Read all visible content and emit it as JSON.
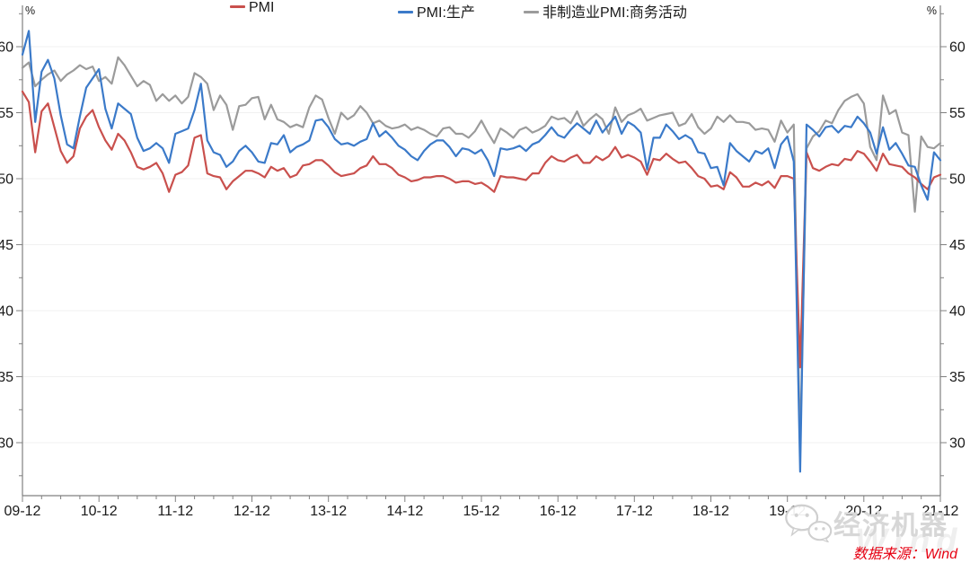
{
  "page": {
    "background": "#ffffff"
  },
  "footer": {
    "source_text": "数据来源：Wind",
    "color": "#e60012"
  },
  "watermark": {
    "icon": "wechat-icon",
    "text": "经济机器",
    "wind_text": "Wind"
  },
  "chart_data": {
    "type": "line",
    "title": "",
    "xlabel": "",
    "ylabel_left": "%",
    "ylabel_right": "%",
    "x_start": "2009-12",
    "x_end": "2021-12",
    "frequency": "monthly",
    "x_tick_labels": [
      "09-12",
      "10-12",
      "11-12",
      "12-12",
      "13-12",
      "14-12",
      "15-12",
      "16-12",
      "17-12",
      "18-12",
      "19-12",
      "20-12",
      "21-12"
    ],
    "x_major_every_months": 12,
    "x_minor_every_months": 3,
    "y_ticks": [
      30,
      35,
      40,
      45,
      50,
      55,
      60
    ],
    "y_minor_step": 2.5,
    "ylim": [
      26,
      63
    ],
    "grid": "horizontal-light",
    "legend_position": "bottom",
    "axis_color": "#808080",
    "grid_color": "#f0f0f0",
    "text_color": "#1a1a1a",
    "series": [
      {
        "name": "PMI",
        "color": "#c9504d",
        "values": [
          56.6,
          55.8,
          52.0,
          55.1,
          55.7,
          53.9,
          52.1,
          51.2,
          51.7,
          53.8,
          54.7,
          55.2,
          53.9,
          52.9,
          52.2,
          53.4,
          52.9,
          52.0,
          50.9,
          50.7,
          50.9,
          51.2,
          50.4,
          49.0,
          50.3,
          50.5,
          51.0,
          53.1,
          53.3,
          50.4,
          50.2,
          50.1,
          49.2,
          49.8,
          50.2,
          50.6,
          50.6,
          50.4,
          50.1,
          50.9,
          50.6,
          50.8,
          50.1,
          50.3,
          51.0,
          51.1,
          51.4,
          51.4,
          51.0,
          50.5,
          50.2,
          50.3,
          50.4,
          50.8,
          51.0,
          51.7,
          51.1,
          51.1,
          50.8,
          50.3,
          50.1,
          49.8,
          49.9,
          50.1,
          50.1,
          50.2,
          50.2,
          50.0,
          49.7,
          49.8,
          49.8,
          49.6,
          49.7,
          49.4,
          49.0,
          50.2,
          50.1,
          50.1,
          50.0,
          49.9,
          50.4,
          50.4,
          51.2,
          51.7,
          51.4,
          51.3,
          51.6,
          51.8,
          51.2,
          51.2,
          51.7,
          51.4,
          51.7,
          52.4,
          51.6,
          51.8,
          51.6,
          51.3,
          50.3,
          51.5,
          51.4,
          51.9,
          51.5,
          51.2,
          51.3,
          50.8,
          50.2,
          50.0,
          49.4,
          49.5,
          49.2,
          50.5,
          50.1,
          49.4,
          49.4,
          49.7,
          49.5,
          49.8,
          49.3,
          50.2,
          50.2,
          50.0,
          35.7,
          52.0,
          50.8,
          50.6,
          50.9,
          51.1,
          51.0,
          51.5,
          51.4,
          52.1,
          51.9,
          51.3,
          50.6,
          51.9,
          51.1,
          51.0,
          50.9,
          50.4,
          50.1,
          49.6,
          49.2,
          50.1,
          50.3
        ]
      },
      {
        "name": "PMI:生产",
        "color": "#3b7ac9",
        "values": [
          59.4,
          61.2,
          54.3,
          58.1,
          59.0,
          57.6,
          54.8,
          52.6,
          52.3,
          54.7,
          56.9,
          57.6,
          58.3,
          55.3,
          53.8,
          55.7,
          55.3,
          54.9,
          53.1,
          52.1,
          52.3,
          52.7,
          52.3,
          51.2,
          53.4,
          53.6,
          53.8,
          55.2,
          57.2,
          52.9,
          52.0,
          51.8,
          50.9,
          51.3,
          52.1,
          52.5,
          52.0,
          51.3,
          51.2,
          52.7,
          52.6,
          53.3,
          52.0,
          52.4,
          52.6,
          52.9,
          54.4,
          54.5,
          53.9,
          53.0,
          52.6,
          52.7,
          52.5,
          52.8,
          53.0,
          54.2,
          53.2,
          53.6,
          53.1,
          52.5,
          52.2,
          51.7,
          51.4,
          52.1,
          52.6,
          52.9,
          52.9,
          52.4,
          51.7,
          52.3,
          52.2,
          51.9,
          52.2,
          51.4,
          50.2,
          52.3,
          52.2,
          52.3,
          52.5,
          52.1,
          52.6,
          52.8,
          53.3,
          53.9,
          53.3,
          53.1,
          53.7,
          54.2,
          53.8,
          53.4,
          54.4,
          53.5,
          54.1,
          54.7,
          53.4,
          54.3,
          54.0,
          53.5,
          50.7,
          53.1,
          53.1,
          54.1,
          53.6,
          53.0,
          53.3,
          53.0,
          52.0,
          51.9,
          50.8,
          50.9,
          49.5,
          52.7,
          52.1,
          51.7,
          51.3,
          52.1,
          51.9,
          52.3,
          50.8,
          52.6,
          53.2,
          51.3,
          27.8,
          54.1,
          53.7,
          53.2,
          53.9,
          54.0,
          53.5,
          54.0,
          53.9,
          54.7,
          54.2,
          53.5,
          51.9,
          53.9,
          52.2,
          52.7,
          51.9,
          51.0,
          50.9,
          49.5,
          48.4,
          52.0,
          51.4
        ]
      },
      {
        "name": "非制造业PMI:商务活动",
        "color": "#9b9b9b",
        "values": [
          58.4,
          58.8,
          57.0,
          57.5,
          57.9,
          58.2,
          57.4,
          57.9,
          58.2,
          58.6,
          58.3,
          58.5,
          57.4,
          57.7,
          57.2,
          59.2,
          58.6,
          57.8,
          57.0,
          57.4,
          57.1,
          55.9,
          56.4,
          55.9,
          56.3,
          55.7,
          56.2,
          58.0,
          57.7,
          57.2,
          55.2,
          56.3,
          55.6,
          53.7,
          55.5,
          55.6,
          56.1,
          56.2,
          54.5,
          55.6,
          54.5,
          54.3,
          53.9,
          54.1,
          53.9,
          55.4,
          56.3,
          56.0,
          54.6,
          53.4,
          55.0,
          54.5,
          54.8,
          55.5,
          55.0,
          54.2,
          54.4,
          54.0,
          53.8,
          53.9,
          54.1,
          53.7,
          53.9,
          53.7,
          53.4,
          53.2,
          53.8,
          53.9,
          53.4,
          53.4,
          53.1,
          53.6,
          54.4,
          53.5,
          52.7,
          53.8,
          53.5,
          53.1,
          53.7,
          53.9,
          53.5,
          53.7,
          54.0,
          54.7,
          54.5,
          54.6,
          54.2,
          55.1,
          54.0,
          54.5,
          54.9,
          54.5,
          53.4,
          55.4,
          54.3,
          54.8,
          55.0,
          55.3,
          54.4,
          54.6,
          54.8,
          54.9,
          55.0,
          54.0,
          54.2,
          54.9,
          53.9,
          53.4,
          53.8,
          54.7,
          54.3,
          54.8,
          54.3,
          54.3,
          54.2,
          53.7,
          53.8,
          53.7,
          52.8,
          54.4,
          53.5,
          54.1,
          29.6,
          52.3,
          53.2,
          53.6,
          54.4,
          54.2,
          55.2,
          55.9,
          56.2,
          56.4,
          55.7,
          52.4,
          51.4,
          56.3,
          54.9,
          55.2,
          53.5,
          53.3,
          47.5,
          53.2,
          52.4,
          52.3,
          52.7
        ]
      }
    ]
  }
}
